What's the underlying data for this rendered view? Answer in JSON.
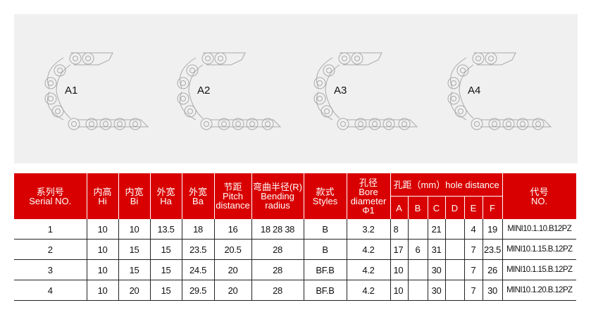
{
  "diagrams": [
    "A1",
    "A2",
    "A3",
    "A4"
  ],
  "table": {
    "headers": {
      "serial": [
        "系列号",
        "Serial NO."
      ],
      "hi": [
        "内高",
        "Hi"
      ],
      "bi": [
        "内宽",
        "Bi"
      ],
      "ha": [
        "外宽",
        "Ha"
      ],
      "ba": [
        "外宽",
        "Ba"
      ],
      "pitch": [
        "节距",
        "Pitch",
        "distance"
      ],
      "radius": [
        "弯曲半径(R)",
        "Bending",
        "radius"
      ],
      "styles": [
        "款式",
        "Styles"
      ],
      "bore": [
        "孔径",
        "Bore",
        "diameter",
        "Φ1"
      ],
      "hole": "孔距（mm）hole distance",
      "hole_sub": [
        "A",
        "B",
        "C",
        "D",
        "E",
        "F"
      ],
      "no": [
        "代号",
        "NO."
      ]
    },
    "rows": [
      [
        "1",
        "10",
        "10",
        "13.5",
        "18",
        "16",
        "18 28 38",
        "B",
        "3.2",
        "8",
        "",
        "21",
        "",
        "4",
        "19",
        "MINI10.1.10.B12PZ"
      ],
      [
        "2",
        "10",
        "15",
        "15",
        "23.5",
        "20.5",
        "28",
        "B",
        "4.2",
        "17",
        "6",
        "31",
        "",
        "7",
        "23.5",
        "MINI10.1.15.B.12PZ"
      ],
      [
        "3",
        "10",
        "15",
        "15",
        "24.5",
        "20",
        "28",
        "BF.B",
        "4.2",
        "10",
        "",
        "30",
        "",
        "7",
        "26",
        "MINI10.1.15.B.12PZ"
      ],
      [
        "4",
        "10",
        "20",
        "15",
        "29.5",
        "20",
        "28",
        "BF.B",
        "4.2",
        "10",
        "",
        "30",
        "",
        "7",
        "30",
        "MINI10.1.20.B.12PZ"
      ]
    ]
  }
}
